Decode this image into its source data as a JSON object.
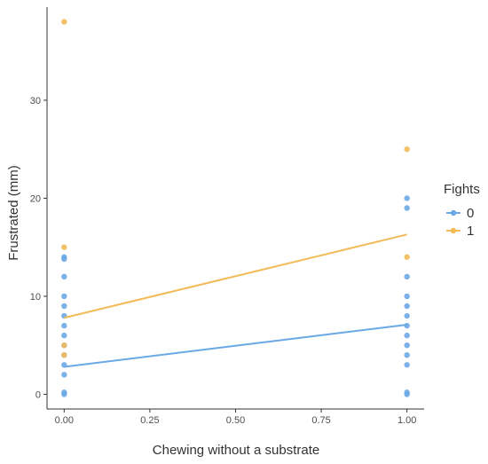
{
  "chart_data": {
    "type": "scatter",
    "title": "",
    "xlabel": "Chewing without a substrate",
    "ylabel": "Frustrated (mm)",
    "xlim": [
      -0.05,
      1.05
    ],
    "ylim": [
      -1.5,
      39.5
    ],
    "x_ticks": [
      0,
      0.25,
      0.5,
      0.75,
      1
    ],
    "x_tick_labels": [
      "0.00",
      "0.25",
      "0.50",
      "0.75",
      "1.00"
    ],
    "y_ticks": [
      0,
      10,
      20,
      30
    ],
    "y_tick_labels": [
      "0",
      "10",
      "20",
      "30"
    ],
    "grid": false,
    "legend": {
      "title": "Fights",
      "placement": "right"
    },
    "series": [
      {
        "name": "0",
        "color": "#6aa8e6",
        "points": [
          [
            0,
            0
          ],
          [
            0,
            0.2
          ],
          [
            0,
            2
          ],
          [
            0,
            3
          ],
          [
            0,
            4
          ],
          [
            0,
            5
          ],
          [
            0,
            6
          ],
          [
            0,
            7
          ],
          [
            0,
            8
          ],
          [
            0,
            9
          ],
          [
            0,
            10
          ],
          [
            0,
            12
          ],
          [
            0,
            14
          ],
          [
            0,
            13.8
          ],
          [
            1,
            0
          ],
          [
            1,
            0.2
          ],
          [
            1,
            3
          ],
          [
            1,
            4
          ],
          [
            1,
            5
          ],
          [
            1,
            6
          ],
          [
            1,
            7
          ],
          [
            1,
            8
          ],
          [
            1,
            9
          ],
          [
            1,
            10
          ],
          [
            1,
            12
          ],
          [
            1,
            19
          ],
          [
            1,
            20
          ]
        ],
        "fit_line": [
          [
            0,
            2.8
          ],
          [
            1,
            7.1
          ]
        ]
      },
      {
        "name": "1",
        "color": "#f2bb58",
        "points": [
          [
            0,
            38
          ],
          [
            0,
            15
          ],
          [
            0,
            5
          ],
          [
            0,
            4
          ],
          [
            1,
            25
          ],
          [
            1,
            14
          ]
        ],
        "fit_line": [
          [
            0,
            7.8
          ],
          [
            1,
            16.3
          ]
        ]
      }
    ]
  }
}
